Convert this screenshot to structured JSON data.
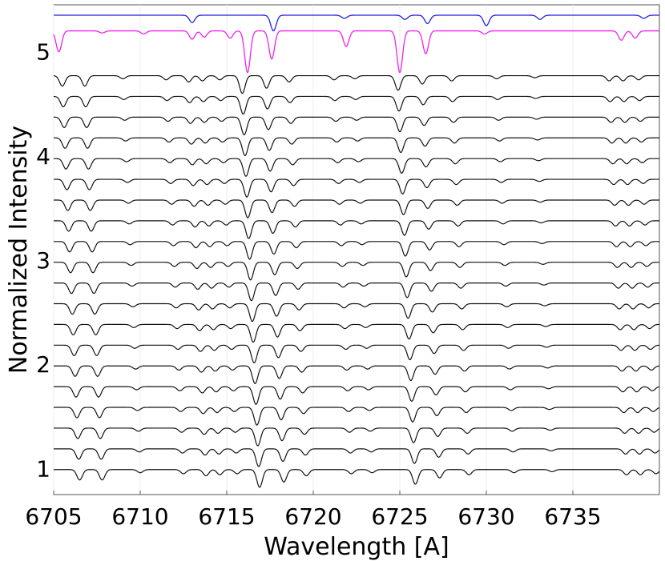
{
  "chart_data": {
    "type": "line",
    "xlabel": "Wavelength [A]",
    "ylabel": "Normalized Intensity",
    "xlim": [
      6705,
      6740
    ],
    "ylim": [
      0.75,
      5.45
    ],
    "x_ticks": [
      6705,
      6710,
      6715,
      6720,
      6725,
      6730,
      6735
    ],
    "y_ticks": [
      1,
      2,
      3,
      4,
      5
    ],
    "grid": false,
    "colors": {
      "top": "#2222dd",
      "second": "#ee22ee",
      "stack": "#111111"
    },
    "top_spectra": [
      {
        "color": "top",
        "continuum": 5.35,
        "lines": [
          [
            6713,
            0.07
          ],
          [
            6717.7,
            0.15
          ],
          [
            6721.8,
            0.03
          ],
          [
            6725.3,
            0.04
          ],
          [
            6726.6,
            0.08
          ],
          [
            6730.0,
            0.1
          ],
          [
            6733.1,
            0.04
          ],
          [
            6739.1,
            0.03
          ]
        ]
      },
      {
        "color": "second",
        "continuum": 5.2,
        "lines": [
          [
            6705.3,
            0.2
          ],
          [
            6707.8,
            0.02
          ],
          [
            6710.2,
            0.03
          ],
          [
            6713.0,
            0.08
          ],
          [
            6713.7,
            0.06
          ],
          [
            6715.2,
            0.07
          ],
          [
            6716.2,
            0.4
          ],
          [
            6717.6,
            0.27
          ],
          [
            6721.9,
            0.15
          ],
          [
            6725.0,
            0.4
          ],
          [
            6726.5,
            0.22
          ],
          [
            6729.9,
            0.03
          ],
          [
            6737.8,
            0.09
          ],
          [
            6738.6,
            0.07
          ]
        ]
      }
    ],
    "stack": {
      "count": 20,
      "continuum_first": 4.77,
      "continuum_last": 0.99,
      "shift_first": 0,
      "shift_last": 1.0,
      "lines": [
        [
          6705.5,
          0.1
        ],
        [
          6706.8,
          0.1
        ],
        [
          6709.0,
          0.03
        ],
        [
          6711.5,
          0.04
        ],
        [
          6712.8,
          0.06
        ],
        [
          6713.6,
          0.05
        ],
        [
          6714.6,
          0.04
        ],
        [
          6715.9,
          0.17
        ],
        [
          6717.3,
          0.12
        ],
        [
          6718.6,
          0.06
        ],
        [
          6721.2,
          0.04
        ],
        [
          6722.4,
          0.03
        ],
        [
          6724.9,
          0.14
        ],
        [
          6726.3,
          0.08
        ],
        [
          6728.0,
          0.05
        ],
        [
          6730.6,
          0.03
        ],
        [
          6732.8,
          0.02
        ],
        [
          6737.1,
          0.05
        ],
        [
          6737.9,
          0.05
        ],
        [
          6738.8,
          0.04
        ]
      ]
    }
  }
}
